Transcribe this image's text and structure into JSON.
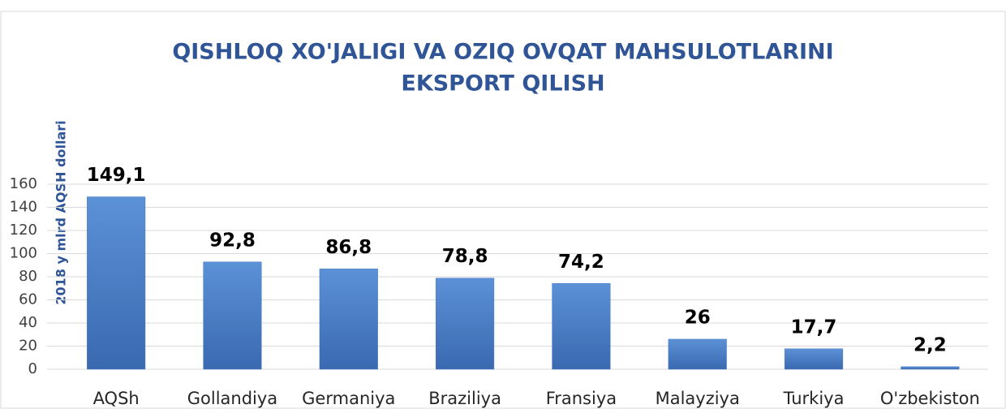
{
  "chart_data": {
    "type": "bar",
    "title": [
      "QISHLOQ XO'JALIGI VA OZIQ OVQAT MAHSULOTLARINI",
      "EKSPORT QILISH"
    ],
    "y_label": "2018 y mlrd AQSH dollari",
    "categories": [
      "AQSh",
      "Gollandiya",
      "Germaniya",
      "Braziliya",
      "Fransiya",
      "Malayziya",
      "Turkiya",
      "O'zbekiston"
    ],
    "values": [
      149.1,
      92.8,
      86.8,
      78.8,
      74.2,
      26,
      17.7,
      2.2
    ],
    "value_labels": [
      "149,1",
      "92,8",
      "86,8",
      "78,8",
      "74,2",
      "26",
      "17,7",
      "2,2"
    ],
    "color": "#4a7cc4",
    "ylim": [
      0,
      160
    ],
    "yticks": [
      0,
      20,
      40,
      60,
      80,
      100,
      120,
      140,
      160
    ],
    "grid": true
  }
}
